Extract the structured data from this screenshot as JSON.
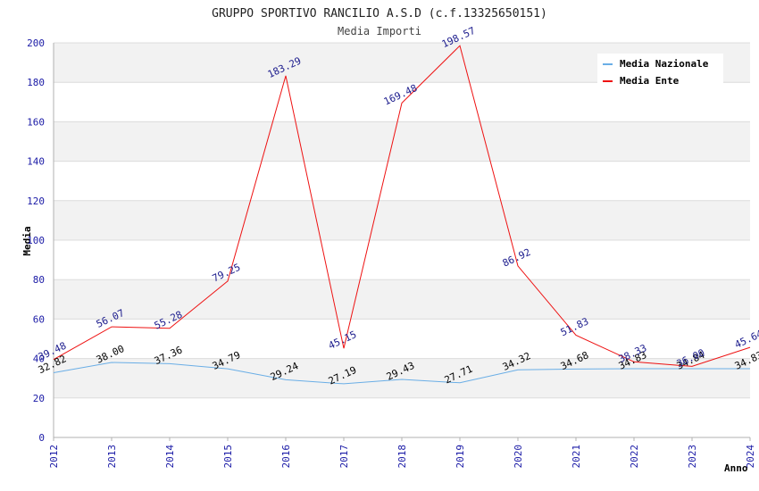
{
  "chart_data": {
    "type": "line",
    "title": "GRUPPO SPORTIVO RANCILIO A.S.D (c.f.13325650151)",
    "subtitle": "Media Importi",
    "xlabel": "Anno",
    "ylabel": "Media",
    "ylim": [
      0,
      200
    ],
    "yticks": [
      0,
      20,
      40,
      60,
      80,
      100,
      120,
      140,
      160,
      180,
      200
    ],
    "grid": true,
    "legend_position": "top-right",
    "categories": [
      "2012",
      "2013",
      "2014",
      "2015",
      "2016",
      "2017",
      "2018",
      "2019",
      "2020",
      "2021",
      "2022",
      "2023",
      "2024"
    ],
    "series": [
      {
        "name": "Media Nazionale",
        "color": "#6aaee6",
        "label_color": "#000000",
        "values": [
          32.82,
          38.0,
          37.36,
          34.79,
          29.24,
          27.19,
          29.43,
          27.71,
          34.32,
          34.68,
          34.83,
          34.84,
          34.83
        ],
        "labels": [
          "32.82",
          "38.00",
          "37.36",
          "34.79",
          "29.24",
          "27.19",
          "29.43",
          "27.71",
          "34.32",
          "34.68",
          "34.83",
          "34.84",
          "34.83"
        ]
      },
      {
        "name": "Media Ente",
        "color": "#ee1111",
        "label_color": "#1a1a8c",
        "values": [
          39.48,
          56.07,
          55.28,
          79.25,
          183.29,
          45.15,
          169.48,
          198.57,
          86.92,
          51.83,
          38.33,
          36.0,
          45.64
        ],
        "labels": [
          "39.48",
          "56.07",
          "55.28",
          "79.25",
          "183.29",
          "45.15",
          "169.48",
          "198.57",
          "86.92",
          "51.83",
          "38.33",
          "36.00",
          "45.64"
        ]
      }
    ]
  }
}
